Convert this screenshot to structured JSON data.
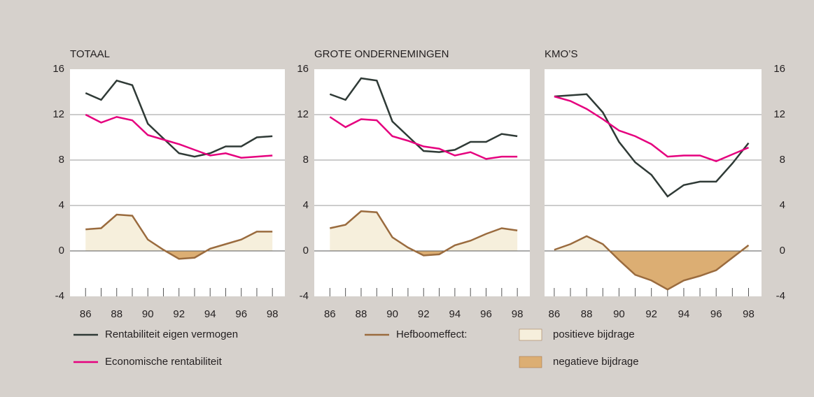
{
  "chart_data": [
    {
      "type": "line",
      "title": "TOTAAL",
      "x": [
        86,
        87,
        88,
        89,
        90,
        91,
        92,
        93,
        94,
        95,
        96,
        97,
        98
      ],
      "xlim": [
        85,
        98.8
      ],
      "xticks": [
        86,
        88,
        90,
        92,
        94,
        96,
        98
      ],
      "ylim": [
        -4,
        16
      ],
      "yticks": [
        -4,
        0,
        4,
        8,
        12,
        16
      ],
      "grid": true,
      "y_axis_side": "left",
      "series": [
        {
          "name": "Rentabiliteit eigen vermogen",
          "color": "#2f3a36",
          "values": [
            13.9,
            13.3,
            15.0,
            14.6,
            11.2,
            9.9,
            8.6,
            8.3,
            8.6,
            9.2,
            9.2,
            10.0,
            10.1
          ]
        },
        {
          "name": "Economische rentabiliteit",
          "color": "#e5007e",
          "values": [
            12.0,
            11.3,
            11.8,
            11.5,
            10.2,
            9.8,
            9.4,
            8.9,
            8.4,
            8.6,
            8.2,
            8.3,
            8.4
          ]
        },
        {
          "name": "Hefboomeffect:",
          "color": "#9a6b3e",
          "fill_colors": [
            "#f6efdc",
            "#dcae73"
          ],
          "values": [
            1.9,
            2.0,
            3.2,
            3.1,
            1.0,
            0.1,
            -0.7,
            -0.6,
            0.2,
            0.6,
            1.0,
            1.7,
            1.7
          ]
        }
      ]
    },
    {
      "type": "line",
      "title": "GROTE ONDERNEMINGEN",
      "x": [
        86,
        87,
        88,
        89,
        90,
        91,
        92,
        93,
        94,
        95,
        96,
        97,
        98
      ],
      "xlim": [
        85,
        98.8
      ],
      "xticks": [
        86,
        88,
        90,
        92,
        94,
        96,
        98
      ],
      "ylim": [
        -4,
        16
      ],
      "yticks": [
        -4,
        0,
        4,
        8,
        12,
        16
      ],
      "grid": true,
      "y_axis_side": "left",
      "series": [
        {
          "name": "Rentabiliteit eigen vermogen",
          "color": "#2f3a36",
          "values": [
            13.8,
            13.3,
            15.2,
            15.0,
            11.4,
            10.1,
            8.8,
            8.7,
            8.9,
            9.6,
            9.6,
            10.3,
            10.1
          ]
        },
        {
          "name": "Economische rentabiliteit",
          "color": "#e5007e",
          "values": [
            11.8,
            10.9,
            11.6,
            11.5,
            10.1,
            9.7,
            9.2,
            9.0,
            8.4,
            8.7,
            8.1,
            8.3,
            8.3
          ]
        },
        {
          "name": "Hefboomeffect:",
          "color": "#9a6b3e",
          "fill_colors": [
            "#f6efdc",
            "#dcae73"
          ],
          "values": [
            2.0,
            2.3,
            3.5,
            3.4,
            1.2,
            0.3,
            -0.4,
            -0.3,
            0.5,
            0.9,
            1.5,
            2.0,
            1.8
          ]
        }
      ]
    },
    {
      "type": "line",
      "title": "KMO’S",
      "x": [
        86,
        87,
        88,
        89,
        90,
        91,
        92,
        93,
        94,
        95,
        96,
        97,
        98
      ],
      "xlim": [
        85.4,
        98.8
      ],
      "xticks": [
        86,
        88,
        90,
        92,
        94,
        96,
        98
      ],
      "ylim": [
        -4,
        16
      ],
      "yticks": [
        -4,
        0,
        4,
        8,
        12,
        16
      ],
      "grid": true,
      "y_axis_side": "right",
      "series": [
        {
          "name": "Rentabiliteit eigen vermogen",
          "color": "#2f3a36",
          "values": [
            13.6,
            13.7,
            13.8,
            12.2,
            9.6,
            7.8,
            6.7,
            4.8,
            5.8,
            6.1,
            6.1,
            7.7,
            9.5
          ]
        },
        {
          "name": "Economische rentabiliteit",
          "color": "#e5007e",
          "values": [
            13.6,
            13.2,
            12.5,
            11.6,
            10.6,
            10.1,
            9.4,
            8.3,
            8.4,
            8.4,
            7.9,
            8.5,
            9.1
          ]
        },
        {
          "name": "Hefboomeffect:",
          "color": "#9a6b3e",
          "fill_colors": [
            "#f6efdc",
            "#dcae73"
          ],
          "values": [
            0.1,
            0.6,
            1.3,
            0.6,
            -0.8,
            -2.1,
            -2.6,
            -3.4,
            -2.6,
            -2.2,
            -1.7,
            -0.6,
            0.5
          ]
        }
      ]
    }
  ],
  "legend": {
    "positive": "positieve bijdrage",
    "negative": "negatieve bijdrage"
  }
}
